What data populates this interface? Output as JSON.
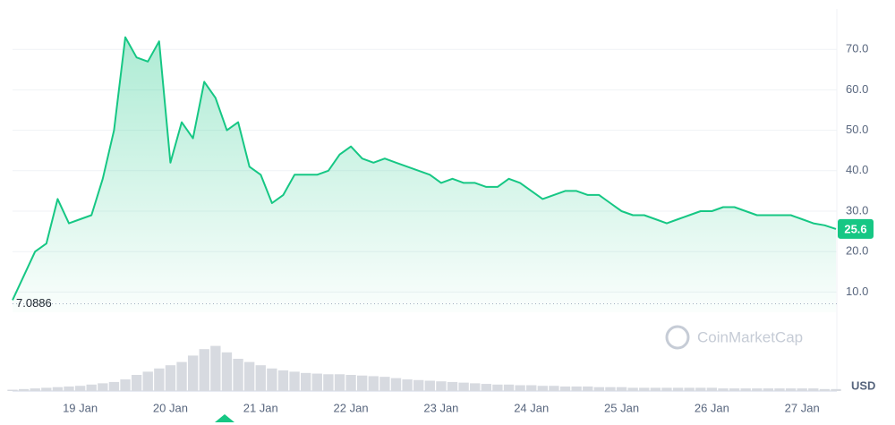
{
  "chart_data": {
    "type": "line",
    "color": "#16c784",
    "categories": [
      null,
      null,
      null,
      null,
      null,
      null,
      "19 Jan",
      null,
      null,
      null,
      null,
      null,
      null,
      null,
      "20 Jan",
      null,
      null,
      null,
      null,
      null,
      null,
      null,
      "21 Jan",
      null,
      null,
      null,
      null,
      null,
      null,
      null,
      "22 Jan",
      null,
      null,
      null,
      null,
      null,
      null,
      null,
      "23 Jan",
      null,
      null,
      null,
      null,
      null,
      null,
      null,
      "24 Jan",
      null,
      null,
      null,
      null,
      null,
      null,
      null,
      "25 Jan",
      null,
      null,
      null,
      null,
      null,
      null,
      null,
      "26 Jan",
      null,
      null,
      null,
      null,
      null,
      null,
      null,
      "27 Jan",
      null,
      null,
      null
    ],
    "values": [
      8,
      14,
      20,
      22,
      33,
      27,
      28,
      29,
      38,
      50,
      73,
      68,
      67,
      72,
      42,
      52,
      48,
      62,
      58,
      50,
      52,
      41,
      39,
      32,
      34,
      39,
      39,
      39,
      40,
      44,
      46,
      43,
      42,
      43,
      42,
      41,
      40,
      39,
      37,
      38,
      37,
      37,
      36,
      36,
      38,
      37,
      35,
      33,
      34,
      35,
      35,
      34,
      34,
      32,
      30,
      29,
      29,
      28,
      27,
      28,
      29,
      30,
      30,
      31,
      31,
      30,
      29,
      29,
      29,
      29,
      28,
      27,
      26.5,
      25.6
    ],
    "ylim": [
      5,
      80
    ],
    "yticks": [
      {
        "value": 10,
        "label": "10.0"
      },
      {
        "value": 20,
        "label": "20.0"
      },
      {
        "value": 30,
        "label": "30.0"
      },
      {
        "value": 40,
        "label": "40.0"
      },
      {
        "value": 50,
        "label": "50.0"
      },
      {
        "value": 60,
        "label": "60.0"
      },
      {
        "value": 70,
        "label": "70.0"
      }
    ],
    "grid": true,
    "reference_line": 7.0886,
    "y_unit": "USD",
    "watermark": "CoinMarketCap",
    "volume": {
      "color": "#d7dae0",
      "ylim": [
        0,
        100
      ],
      "values": [
        2,
        3,
        4,
        5,
        6,
        7,
        8,
        10,
        12,
        14,
        18,
        25,
        30,
        35,
        40,
        45,
        55,
        65,
        70,
        60,
        50,
        45,
        40,
        35,
        32,
        30,
        28,
        27,
        26,
        26,
        25,
        24,
        23,
        22,
        20,
        18,
        17,
        16,
        15,
        14,
        13,
        12,
        11,
        10,
        10,
        9,
        9,
        8,
        8,
        7,
        7,
        7,
        6,
        6,
        6,
        5,
        5,
        5,
        5,
        5,
        5,
        5,
        5,
        4,
        4,
        4,
        4,
        4,
        4,
        4,
        4,
        4,
        3,
        3
      ]
    }
  }
}
